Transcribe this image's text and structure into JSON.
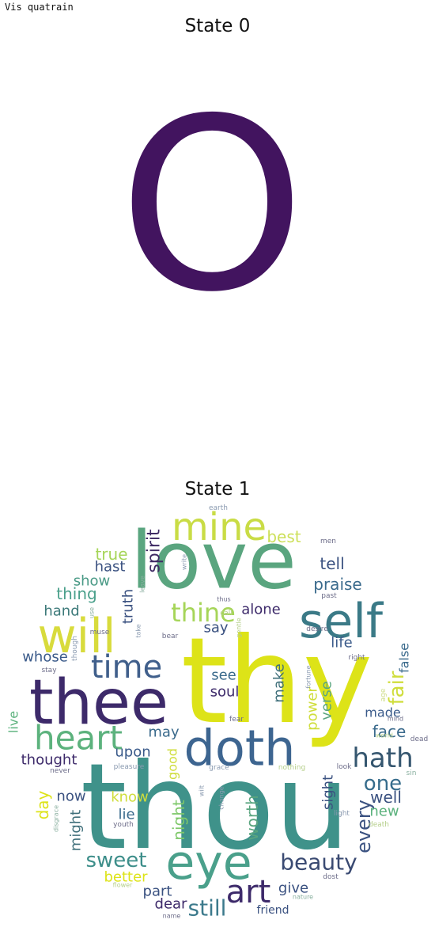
{
  "header": {
    "text": "Vis quatrain"
  },
  "palette": {
    "dark_purple": "#440154",
    "indigo": "#482677",
    "blue": "#3b528b",
    "slate": "#31688e",
    "teal": "#26828e",
    "sea": "#21918c",
    "green": "#35b779",
    "lime": "#b5de2b",
    "yellow": "#dde318"
  },
  "panels": [
    {
      "title": "State 0",
      "words": [
        {
          "text": "O",
          "color": "#42145f",
          "rotate": false
        }
      ]
    },
    {
      "title": "State 1",
      "words": [
        {
          "text": "thy",
          "color": "#dde318",
          "rotate": false
        },
        {
          "text": "thou",
          "color": "#3f928a",
          "rotate": false
        },
        {
          "text": "love",
          "color": "#5aa57f",
          "rotate": false
        },
        {
          "text": "thee",
          "color": "#3d2a6a",
          "rotate": false
        },
        {
          "text": "doth",
          "color": "#3d6590",
          "rotate": false
        },
        {
          "text": "eye",
          "color": "#4aa08b",
          "rotate": false
        },
        {
          "text": "will",
          "color": "#d8db3c",
          "rotate": false
        },
        {
          "text": "self",
          "color": "#3b7a87",
          "rotate": false
        },
        {
          "text": "mine",
          "color": "#c9dc45",
          "rotate": false
        },
        {
          "text": "heart",
          "color": "#5cb27d",
          "rotate": false
        },
        {
          "text": "art",
          "color": "#3d2a6a",
          "rotate": false
        },
        {
          "text": "time",
          "color": "#405f8b",
          "rotate": false
        },
        {
          "text": "hath",
          "color": "#35566f",
          "rotate": false
        },
        {
          "text": "thine",
          "color": "#a6d559",
          "rotate": false
        },
        {
          "text": "beauty",
          "color": "#3a4a72",
          "rotate": false
        },
        {
          "text": "sweet",
          "color": "#3d8e8a",
          "rotate": false
        },
        {
          "text": "still",
          "color": "#3c7a8c",
          "rotate": false
        },
        {
          "text": "one",
          "color": "#366c8c",
          "rotate": false
        },
        {
          "text": "every",
          "color": "#3a5180",
          "rotate": false
        },
        {
          "text": "fair",
          "color": "#cfdd3b",
          "rotate": false
        },
        {
          "text": "spirit",
          "color": "#3f2a64",
          "rotate": false
        },
        {
          "text": "best",
          "color": "#cde05a",
          "rotate": false
        },
        {
          "text": "true",
          "color": "#a6d559",
          "rotate": false
        },
        {
          "text": "hast",
          "color": "#3a5180",
          "rotate": false
        },
        {
          "text": "show",
          "color": "#4a9a86",
          "rotate": false
        },
        {
          "text": "thing",
          "color": "#4aa08b",
          "rotate": false
        },
        {
          "text": "hand",
          "color": "#3d7a7a",
          "rotate": false
        },
        {
          "text": "whose",
          "color": "#3a5a8a",
          "rotate": false
        },
        {
          "text": "tell",
          "color": "#3a5180",
          "rotate": false
        },
        {
          "text": "praise",
          "color": "#3a6a8c",
          "rotate": false
        },
        {
          "text": "alone",
          "color": "#3d2a6a",
          "rotate": false
        },
        {
          "text": "say",
          "color": "#3a5180",
          "rotate": false
        },
        {
          "text": "life",
          "color": "#3a5a8a",
          "rotate": false
        },
        {
          "text": "false",
          "color": "#3a6a8c",
          "rotate": false
        },
        {
          "text": "truth",
          "color": "#3a5180",
          "rotate": false
        },
        {
          "text": "see",
          "color": "#3a6a8c",
          "rotate": false
        },
        {
          "text": "soul",
          "color": "#3d2a6a",
          "rotate": false
        },
        {
          "text": "make",
          "color": "#3f6f7a",
          "rotate": false
        },
        {
          "text": "power",
          "color": "#cfdd3b",
          "rotate": false
        },
        {
          "text": "verse",
          "color": "#5aa57f",
          "rotate": false
        },
        {
          "text": "made",
          "color": "#3a5a8a",
          "rotate": false
        },
        {
          "text": "face",
          "color": "#3a6a8c",
          "rotate": false
        },
        {
          "text": "upon",
          "color": "#3a5a8a",
          "rotate": false
        },
        {
          "text": "may",
          "color": "#3a6a8c",
          "rotate": false
        },
        {
          "text": "good",
          "color": "#cfdd3b",
          "rotate": false
        },
        {
          "text": "thought",
          "color": "#3d2a6a",
          "rotate": false
        },
        {
          "text": "live",
          "color": "#5cb27d",
          "rotate": false
        },
        {
          "text": "day",
          "color": "#dde318",
          "rotate": false
        },
        {
          "text": "now",
          "color": "#3a5180",
          "rotate": false
        },
        {
          "text": "might",
          "color": "#3f6f7a",
          "rotate": false
        },
        {
          "text": "know",
          "color": "#cfdd3b",
          "rotate": false
        },
        {
          "text": "lie",
          "color": "#3a6a8c",
          "rotate": false
        },
        {
          "text": "night",
          "color": "#7ec86a",
          "rotate": false
        },
        {
          "text": "worth",
          "color": "#5aa57f",
          "rotate": false
        },
        {
          "text": "sight",
          "color": "#3a5180",
          "rotate": false
        },
        {
          "text": "well",
          "color": "#3a5180",
          "rotate": false
        },
        {
          "text": "new",
          "color": "#5cb27d",
          "rotate": false
        },
        {
          "text": "better",
          "color": "#dde318",
          "rotate": false
        },
        {
          "text": "part",
          "color": "#3a5180",
          "rotate": false
        },
        {
          "text": "dear",
          "color": "#3d2a6a",
          "rotate": false
        },
        {
          "text": "give",
          "color": "#3a5180",
          "rotate": false
        },
        {
          "text": "friend",
          "color": "#3a5180",
          "rotate": false
        },
        {
          "text": "earth",
          "color": "#8a9ab0",
          "rotate": false
        },
        {
          "text": "men",
          "color": "#6e6e8a",
          "rotate": false
        },
        {
          "text": "write",
          "color": "#8a9ab0",
          "rotate": false
        },
        {
          "text": "leave",
          "color": "#8ab0a0",
          "rotate": false
        },
        {
          "text": "use",
          "color": "#8ab0a0",
          "rotate": false
        },
        {
          "text": "thus",
          "color": "#6e6e8a",
          "rotate": false
        },
        {
          "text": "muse",
          "color": "#6e6e8a",
          "rotate": false
        },
        {
          "text": "take",
          "color": "#8a9ab0",
          "rotate": false
        },
        {
          "text": "bear",
          "color": "#6e6e8a",
          "rotate": false
        },
        {
          "text": "call",
          "color": "#b5cf8a",
          "rotate": false
        },
        {
          "text": "gentle",
          "color": "#b5cf8a",
          "rotate": false
        },
        {
          "text": "desire",
          "color": "#6e6e8a",
          "rotate": false
        },
        {
          "text": "past",
          "color": "#6e6e8a",
          "rotate": false
        },
        {
          "text": "right",
          "color": "#6e6e8a",
          "rotate": false
        },
        {
          "text": "though",
          "color": "#8a9ab0",
          "rotate": false
        },
        {
          "text": "stay",
          "color": "#6e6e8a",
          "rotate": false
        },
        {
          "text": "fortune",
          "color": "#8a9ab0",
          "rotate": false
        },
        {
          "text": "age",
          "color": "#cfdd8a",
          "rotate": false
        },
        {
          "text": "mind",
          "color": "#6e6e8a",
          "rotate": false
        },
        {
          "text": "fear",
          "color": "#6e6e8a",
          "rotate": false
        },
        {
          "text": "world",
          "color": "#b5cf8a",
          "rotate": false
        },
        {
          "text": "dead",
          "color": "#6e6e8a",
          "rotate": false
        },
        {
          "text": "grace",
          "color": "#8a9ab0",
          "rotate": false
        },
        {
          "text": "nothing",
          "color": "#b5cf8a",
          "rotate": false
        },
        {
          "text": "pleasure",
          "color": "#8a9ab0",
          "rotate": false
        },
        {
          "text": "never",
          "color": "#6e6e8a",
          "rotate": false
        },
        {
          "text": "look",
          "color": "#6e6e8a",
          "rotate": false
        },
        {
          "text": "sin",
          "color": "#8ab0a0",
          "rotate": false
        },
        {
          "text": "wilt",
          "color": "#8a9ab0",
          "rotate": false
        },
        {
          "text": "change",
          "color": "#8a9ab0",
          "rotate": false
        },
        {
          "text": "light",
          "color": "#8a9ab0",
          "rotate": false
        },
        {
          "text": "disgrace",
          "color": "#8ab0a0",
          "rotate": false
        },
        {
          "text": "youth",
          "color": "#6e6e8a",
          "rotate": false
        },
        {
          "text": "death",
          "color": "#b5cf8a",
          "rotate": false
        },
        {
          "text": "flower",
          "color": "#b5cf8a",
          "rotate": false
        },
        {
          "text": "dost",
          "color": "#6e6e8a",
          "rotate": false
        },
        {
          "text": "nature",
          "color": "#8ab0a0",
          "rotate": false
        },
        {
          "text": "name",
          "color": "#6e6e8a",
          "rotate": false
        }
      ]
    }
  ]
}
